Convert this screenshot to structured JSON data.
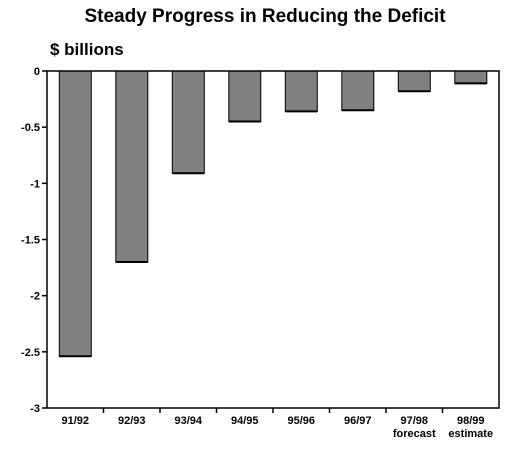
{
  "chart_data": {
    "type": "bar",
    "title": "Steady Progress in Reducing the Deficit",
    "ylabel": "$ billions",
    "xlabel": "",
    "categories": [
      "91/92",
      "92/93",
      "93/94",
      "94/95",
      "95/96",
      "96/97",
      "97/98",
      "98/99"
    ],
    "category_sublabels": [
      "",
      "",
      "",
      "",
      "",
      "",
      "forecast",
      "estimate"
    ],
    "values": [
      -2.54,
      -1.7,
      -0.91,
      -0.45,
      -0.36,
      -0.35,
      -0.18,
      -0.11
    ],
    "ylim": [
      -3,
      0
    ],
    "yticks": [
      0,
      -0.5,
      -1,
      -1.5,
      -2,
      -2.5,
      -3
    ],
    "ytick_labels": [
      "0",
      "-0.5",
      "-1",
      "-1.5",
      "-2",
      "-2.5",
      "-3"
    ],
    "bar_color": "#808080",
    "grid": false,
    "legend": "none"
  }
}
